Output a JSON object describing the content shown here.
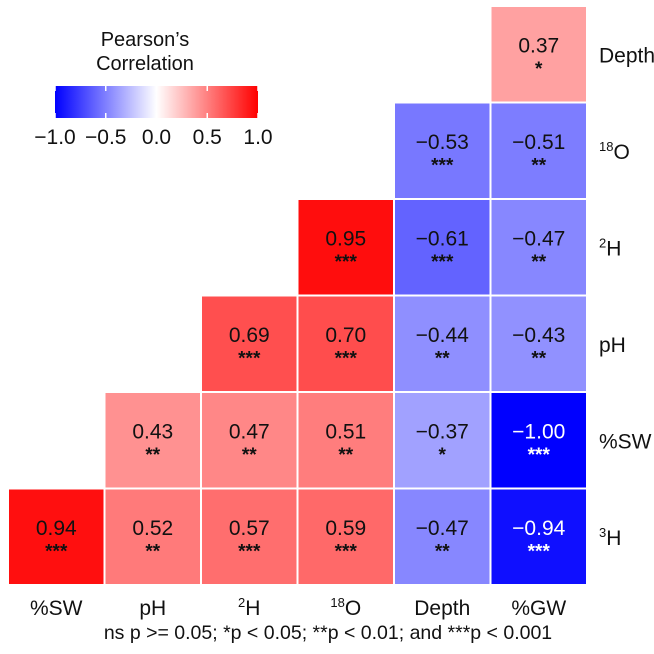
{
  "chart_data": {
    "type": "heatmap",
    "legend": {
      "title_line1": "Pearson’s",
      "title_line2": "Correlation",
      "ticks": [
        "−1.0",
        "−0.5",
        "0.0",
        "0.5",
        "1.0"
      ],
      "tick_values": [
        -1.0,
        -0.5,
        0.0,
        0.5,
        1.0
      ],
      "placement": "top-left"
    },
    "color_scale": {
      "low": "#0000ff",
      "mid": "#ffffff",
      "high": "#ff0000",
      "range": [
        -1,
        1
      ]
    },
    "x_labels": [
      {
        "base": "%SW",
        "sup": ""
      },
      {
        "base": "pH",
        "sup": ""
      },
      {
        "base": "H",
        "sup": "2"
      },
      {
        "base": "O",
        "sup": "18"
      },
      {
        "base": "Depth",
        "sup": ""
      },
      {
        "base": "%GW",
        "sup": ""
      }
    ],
    "y_labels": [
      {
        "base": "Depth",
        "sup": ""
      },
      {
        "base": "O",
        "sup": "18"
      },
      {
        "base": "H",
        "sup": "2"
      },
      {
        "base": "pH",
        "sup": ""
      },
      {
        "base": "%SW",
        "sup": ""
      },
      {
        "base": "H",
        "sup": "3"
      }
    ],
    "cells": [
      {
        "row": 0,
        "col": 5,
        "value": 0.37,
        "label": "0.37",
        "sig": "*"
      },
      {
        "row": 1,
        "col": 4,
        "value": -0.53,
        "label": "−0.53",
        "sig": "***"
      },
      {
        "row": 1,
        "col": 5,
        "value": -0.51,
        "label": "−0.51",
        "sig": "**"
      },
      {
        "row": 2,
        "col": 3,
        "value": 0.95,
        "label": "0.95",
        "sig": "***"
      },
      {
        "row": 2,
        "col": 4,
        "value": -0.61,
        "label": "−0.61",
        "sig": "***"
      },
      {
        "row": 2,
        "col": 5,
        "value": -0.47,
        "label": "−0.47",
        "sig": "**"
      },
      {
        "row": 3,
        "col": 2,
        "value": 0.69,
        "label": "0.69",
        "sig": "***"
      },
      {
        "row": 3,
        "col": 3,
        "value": 0.7,
        "label": "0.70",
        "sig": "***"
      },
      {
        "row": 3,
        "col": 4,
        "value": -0.44,
        "label": "−0.44",
        "sig": "**"
      },
      {
        "row": 3,
        "col": 5,
        "value": -0.43,
        "label": "−0.43",
        "sig": "**"
      },
      {
        "row": 4,
        "col": 1,
        "value": 0.43,
        "label": "0.43",
        "sig": "**"
      },
      {
        "row": 4,
        "col": 2,
        "value": 0.47,
        "label": "0.47",
        "sig": "**"
      },
      {
        "row": 4,
        "col": 3,
        "value": 0.51,
        "label": "0.51",
        "sig": "**"
      },
      {
        "row": 4,
        "col": 4,
        "value": -0.37,
        "label": "−0.37",
        "sig": "*"
      },
      {
        "row": 4,
        "col": 5,
        "value": -1.0,
        "label": "−1.00",
        "sig": "***"
      },
      {
        "row": 5,
        "col": 0,
        "value": 0.94,
        "label": "0.94",
        "sig": "***"
      },
      {
        "row": 5,
        "col": 1,
        "value": 0.52,
        "label": "0.52",
        "sig": "**"
      },
      {
        "row": 5,
        "col": 2,
        "value": 0.57,
        "label": "0.57",
        "sig": "***"
      },
      {
        "row": 5,
        "col": 3,
        "value": 0.59,
        "label": "0.59",
        "sig": "***"
      },
      {
        "row": 5,
        "col": 4,
        "value": -0.47,
        "label": "−0.47",
        "sig": "**"
      },
      {
        "row": 5,
        "col": 5,
        "value": -0.94,
        "label": "−0.94",
        "sig": "***"
      }
    ],
    "footnote": "ns p >= 0.05; *p < 0.05; **p < 0.01; and ***p < 0.001"
  }
}
